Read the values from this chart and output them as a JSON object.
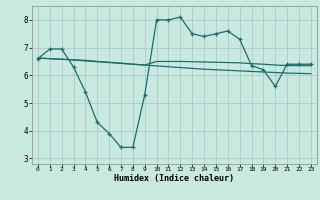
{
  "xlabel": "Humidex (Indice chaleur)",
  "bg_color": "#c8e8e0",
  "grid_color": "#a8ccc8",
  "line_color": "#1a6e6e",
  "xlim": [
    -0.5,
    23.5
  ],
  "ylim": [
    2.8,
    8.5
  ],
  "yticks": [
    3,
    4,
    5,
    6,
    7,
    8
  ],
  "xticks": [
    0,
    1,
    2,
    3,
    4,
    5,
    6,
    7,
    8,
    9,
    10,
    11,
    12,
    13,
    14,
    15,
    16,
    17,
    18,
    19,
    20,
    21,
    22,
    23
  ],
  "line1_x": [
    0,
    1,
    2,
    3,
    4,
    5,
    6,
    7,
    8,
    9,
    10,
    11,
    12,
    13,
    14,
    15,
    16,
    17,
    18,
    19,
    20,
    21,
    22,
    23
  ],
  "line1_y": [
    6.6,
    6.95,
    6.95,
    6.3,
    5.4,
    4.3,
    3.9,
    3.4,
    3.4,
    5.3,
    8.0,
    8.0,
    8.1,
    7.5,
    7.4,
    7.5,
    7.6,
    7.3,
    6.35,
    6.2,
    5.6,
    6.4,
    6.4,
    6.4
  ],
  "line2_x": [
    0,
    1,
    2,
    3,
    4,
    5,
    6,
    7,
    8,
    9,
    10,
    11,
    12,
    13,
    14,
    15,
    16,
    17,
    18,
    19,
    20,
    21,
    22,
    23
  ],
  "line2_y": [
    6.62,
    6.6,
    6.58,
    6.56,
    6.54,
    6.5,
    6.47,
    6.44,
    6.4,
    6.37,
    6.5,
    6.5,
    6.5,
    6.49,
    6.48,
    6.47,
    6.46,
    6.45,
    6.42,
    6.4,
    6.37,
    6.35,
    6.35,
    6.35
  ],
  "line3_x": [
    0,
    1,
    2,
    3,
    4,
    5,
    6,
    7,
    8,
    9,
    10,
    11,
    12,
    13,
    14,
    15,
    16,
    17,
    18,
    19,
    20,
    21,
    22,
    23
  ],
  "line3_y": [
    6.62,
    6.6,
    6.58,
    6.55,
    6.52,
    6.49,
    6.46,
    6.43,
    6.4,
    6.37,
    6.34,
    6.31,
    6.28,
    6.25,
    6.22,
    6.2,
    6.18,
    6.16,
    6.14,
    6.12,
    6.1,
    6.08,
    6.07,
    6.06
  ]
}
